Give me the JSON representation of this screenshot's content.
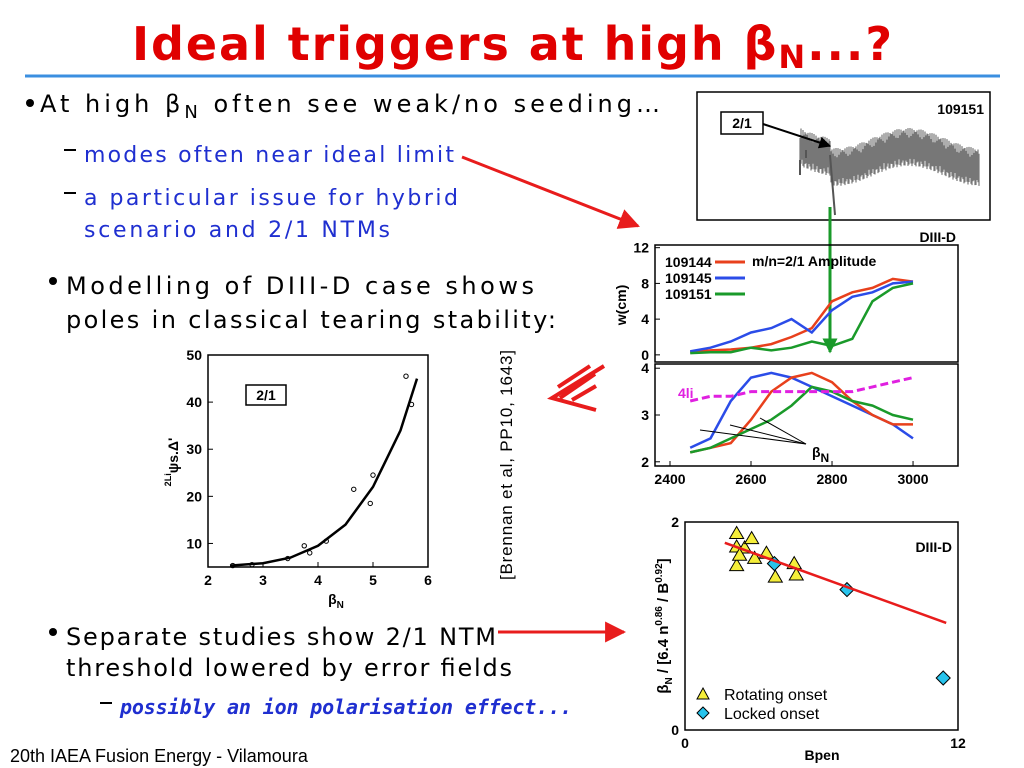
{
  "title": {
    "text": "Ideal triggers at high β",
    "sub": "N",
    "tail": "...?"
  },
  "bullet1": {
    "text": "At high β",
    "sub": "N",
    "tail": " often see weak/no seeding…",
    "sub_items": [
      [
        "modes often near ideal limit"
      ],
      [
        "a particular issue for hybrid",
        "scenario and 2/1 NTMs"
      ]
    ]
  },
  "bullet2": {
    "lines": [
      "Modelling of DIII-D case shows",
      "poles in classical tearing stability:"
    ]
  },
  "bullet3": {
    "lines": [
      "Separate studies show 2/1 NTM",
      "threshold lowered by error fields"
    ],
    "sub_items": [
      [
        "possibly an ion polarisation effect..."
      ]
    ]
  },
  "citation": "[Brennan et al, PP10, 1643]",
  "footer": "20th IAEA Fusion Energy - Vilamoura",
  "figures": {
    "signal": {
      "label": "2/1",
      "shot": "109151"
    },
    "amplitude": {
      "type": "line",
      "title": "DIII-D",
      "ylabel": "w(cm)",
      "legend_title": "m/n=2/1 Amplitude",
      "x": [
        2450,
        2500,
        2550,
        2600,
        2650,
        2700,
        2750,
        2800,
        2850,
        2900,
        2950,
        3000
      ],
      "xlim": [
        2363,
        3111
      ],
      "ylim": [
        -0.8,
        12.3
      ],
      "yticks": [
        0,
        4,
        8,
        12
      ],
      "series": [
        {
          "name": "109144",
          "color": "#e8401c",
          "values": [
            0.3,
            0.5,
            0.6,
            0.8,
            1.2,
            2,
            3,
            6,
            7,
            7.5,
            8.5,
            8.2
          ]
        },
        {
          "name": "109145",
          "color": "#2b4ce8",
          "values": [
            0.4,
            0.8,
            1.5,
            2.5,
            3,
            4,
            2.5,
            5,
            6.5,
            7,
            8,
            8.2
          ]
        },
        {
          "name": "109151",
          "color": "#1a9a2a",
          "values": [
            0.2,
            0.3,
            0.3,
            0.8,
            0.5,
            0.8,
            1.5,
            1,
            1.8,
            6,
            7.5,
            8
          ]
        }
      ]
    },
    "beta": {
      "type": "line",
      "marker_label": {
        "text": "β",
        "sub": "N"
      },
      "x": [
        2450,
        2500,
        2550,
        2600,
        2650,
        2700,
        2750,
        2800,
        2850,
        2900,
        2950,
        3000
      ],
      "xlim": [
        2363,
        3111
      ],
      "ylim": [
        1.91,
        4.09
      ],
      "yticks": [
        2,
        3,
        4
      ],
      "xticks": [
        2400,
        2600,
        2800,
        3000
      ],
      "series": [
        {
          "color": "#2b4ce8",
          "values": [
            2.3,
            2.5,
            3.3,
            3.8,
            3.9,
            3.8,
            3.6,
            3.4,
            3.2,
            3.0,
            2.8,
            2.5
          ]
        },
        {
          "color": "#e8401c",
          "values": [
            2.2,
            2.3,
            2.4,
            2.9,
            3.5,
            3.8,
            3.9,
            3.7,
            3.3,
            3.0,
            2.8,
            2.8
          ]
        },
        {
          "color": "#1a9a2a",
          "values": [
            2.2,
            2.3,
            2.5,
            2.7,
            2.9,
            3.2,
            3.6,
            3.5,
            3.3,
            3.2,
            3.0,
            2.9
          ]
        },
        {
          "name": "4li",
          "color": "#e020e0",
          "dash": true,
          "values": [
            3.3,
            3.4,
            3.4,
            3.5,
            3.5,
            3.5,
            3.5,
            3.5,
            3.5,
            3.6,
            3.7,
            3.8
          ]
        }
      ]
    },
    "tearing": {
      "type": "scatter",
      "box_label": "2/1",
      "ylabel": {
        "text": "ψs.Δ'",
        "sup": "2Li"
      },
      "xlabel": {
        "text": "β",
        "sub": "N"
      },
      "xlim": [
        2,
        6
      ],
      "ylim": [
        5,
        50
      ],
      "xticks": [
        2,
        3,
        4,
        5,
        6
      ],
      "yticks": [
        10,
        20,
        30,
        40,
        50
      ],
      "series": [
        {
          "mark": "circle",
          "color": "#000000",
          "x": [
            2.45,
            2.8,
            3.45,
            3.75,
            3.85,
            4.15,
            4.65,
            4.95,
            5.0,
            5.6,
            5.7
          ],
          "values": [
            5.3,
            5.5,
            6.8,
            9.5,
            8,
            10.5,
            21.5,
            18.5,
            24.5,
            45.5,
            39.5
          ]
        },
        {
          "mark": "line",
          "color": "#000000",
          "x": [
            2.4,
            3,
            3.5,
            4,
            4.5,
            5,
            5.5,
            5.8
          ],
          "values": [
            5.3,
            5.8,
            7,
            9.5,
            14,
            22,
            34,
            45
          ]
        }
      ]
    },
    "threshold": {
      "type": "scatter",
      "title": "DIII-D",
      "xlabel": "Bpen",
      "ylabel": {
        "b": "β",
        "sub": "N",
        "mid": " / [6.4 n",
        "exp1": "0.86",
        "mid2": " / B",
        "exp2": "0.92",
        "end": "]"
      },
      "xlim": [
        0,
        12
      ],
      "ylim": [
        0,
        2
      ],
      "xticks": [
        0,
        12
      ],
      "yticks": [
        0,
        2
      ],
      "series": [
        {
          "name": "Rotating onset",
          "mark": "triangle",
          "color": "#f5ee3a",
          "x": [
            2.27,
            2.27,
            2.27,
            2.62,
            2.93,
            3.06,
            2.4,
            3.97,
            4.8,
            4.89,
            3.58
          ],
          "values": [
            1.89,
            1.76,
            1.58,
            1.75,
            1.84,
            1.65,
            1.68,
            1.47,
            1.6,
            1.49,
            1.7
          ]
        },
        {
          "name": "Locked onset",
          "mark": "diamond",
          "color": "#27c3ec",
          "x": [
            3.93,
            7.12,
            11.35
          ],
          "values": [
            1.6,
            1.35,
            0.5
          ]
        },
        {
          "mark": "line",
          "color": "#e81c1c",
          "x": [
            1.75,
            11.48
          ],
          "values": [
            1.8,
            1.03
          ]
        }
      ]
    }
  }
}
